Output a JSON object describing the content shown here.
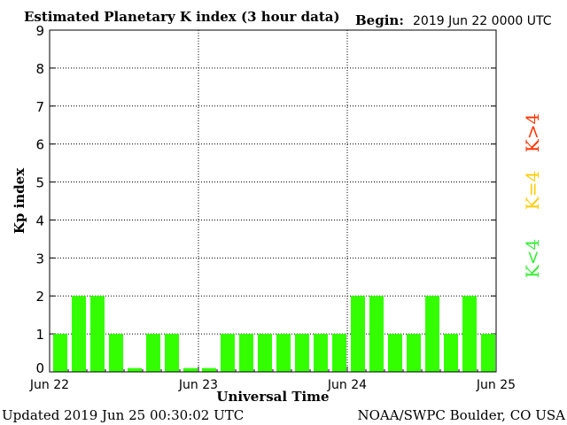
{
  "header": {
    "title": "Estimated Planetary K index (3 hour data)",
    "begin_label": "Begin:",
    "begin_value": "2019 Jun 22 0000 UTC"
  },
  "footer": {
    "updated": "Updated 2019 Jun 25 00:30:02 UTC",
    "credit": "NOAA/SWPC Boulder, CO USA"
  },
  "legend": [
    {
      "label": "K<4",
      "color": "#33ee33"
    },
    {
      "label": "K=4",
      "color": "#ffcc00"
    },
    {
      "label": "K>4",
      "color": "#ff3300"
    }
  ],
  "chart_data": {
    "type": "bar",
    "title": "Estimated Planetary K index (3 hour data)",
    "xlabel": "Universal Time",
    "ylabel": "Kp index",
    "ylim": [
      0,
      9
    ],
    "yticks": [
      0,
      1,
      2,
      3,
      4,
      5,
      6,
      7,
      8,
      9
    ],
    "xticks": [
      "Jun 22",
      "Jun 23",
      "Jun 24",
      "Jun 25"
    ],
    "grid": true,
    "legend_placement": "right",
    "bar_color": "#33ff00",
    "series": [
      {
        "values": [
          1,
          2,
          2,
          1,
          0.1,
          1,
          1,
          0.1,
          0.1,
          1,
          1,
          1,
          1,
          1,
          1,
          1,
          2,
          2,
          1,
          1,
          2,
          1,
          2,
          1
        ]
      }
    ]
  }
}
